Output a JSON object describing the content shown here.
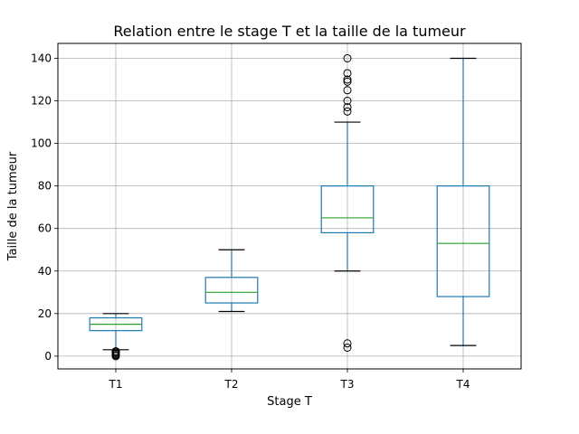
{
  "chart_data": {
    "type": "box",
    "title": "Relation entre le stage T et la taille de la tumeur",
    "xlabel": "Stage T",
    "ylabel": "Taille de la tumeur",
    "ylim": [
      -6,
      147
    ],
    "yticks": [
      0,
      20,
      40,
      60,
      80,
      100,
      120,
      140
    ],
    "grid": true,
    "colors": {
      "box": "#1f77b4",
      "median": "#2ca02c",
      "whisker_cap": "#000000",
      "grid": "#b0b0b0",
      "flier": "#000000"
    },
    "categories": [
      "T1",
      "T2",
      "T3",
      "T4"
    ],
    "boxes": [
      {
        "label": "T1",
        "whislo": 3,
        "q1": 12,
        "med": 15,
        "q3": 18,
        "whishi": 20,
        "fliers": [
          0,
          0.5,
          1,
          1.5,
          2,
          2.3
        ]
      },
      {
        "label": "T2",
        "whislo": 21,
        "q1": 25,
        "med": 30,
        "q3": 37,
        "whishi": 50,
        "fliers": []
      },
      {
        "label": "T3",
        "whislo": 40,
        "q1": 58,
        "med": 65,
        "q3": 80,
        "whishi": 110,
        "fliers": [
          4,
          6,
          115,
          117,
          120,
          125,
          129,
          130,
          133,
          140
        ]
      },
      {
        "label": "T4",
        "whislo": 5,
        "q1": 28,
        "med": 53,
        "q3": 80,
        "whishi": 140,
        "fliers": []
      }
    ]
  }
}
